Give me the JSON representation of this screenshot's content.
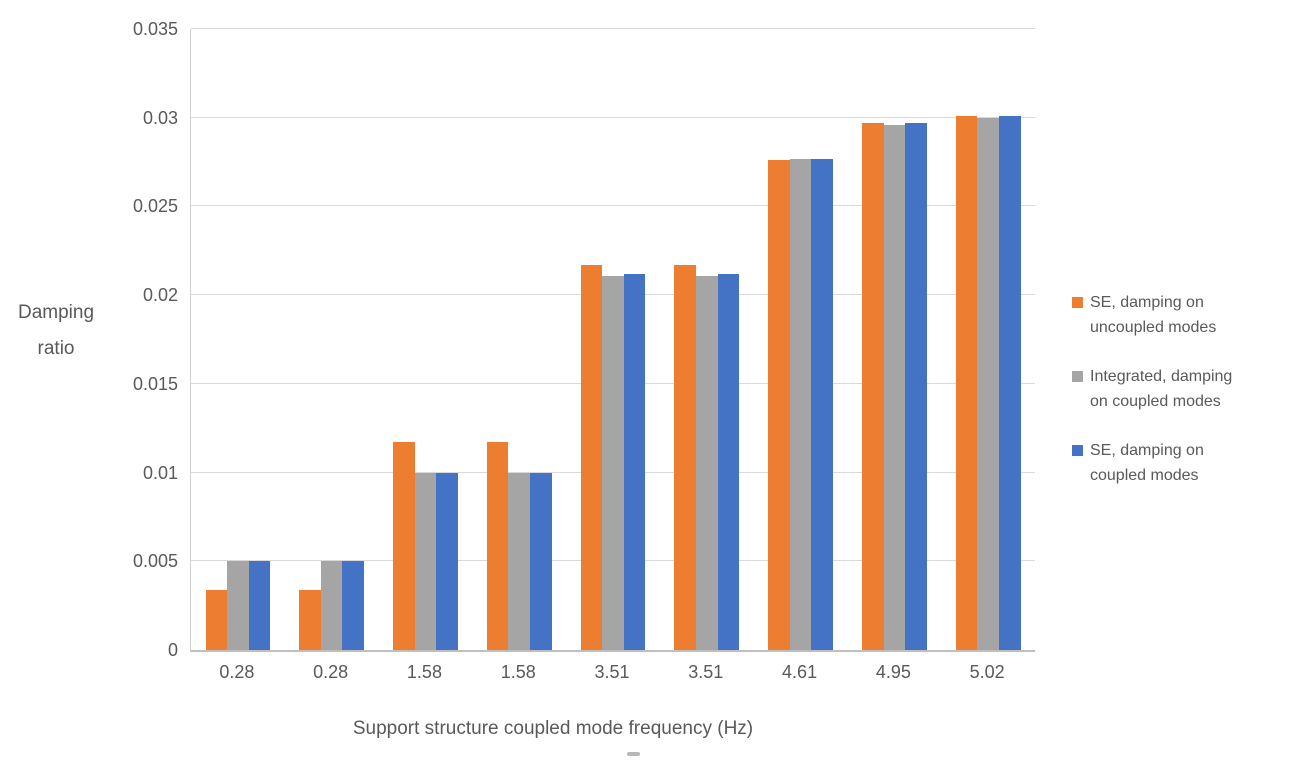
{
  "chart_data": {
    "type": "bar",
    "title": "",
    "categories": [
      "0.28",
      "0.28",
      "1.58",
      "1.58",
      "3.51",
      "3.51",
      "4.61",
      "4.95",
      "5.02"
    ],
    "series": [
      {
        "name": "SE, damping on uncoupled modes",
        "color": "#ED7D31",
        "values": [
          0.0034,
          0.0034,
          0.0117,
          0.0117,
          0.0217,
          0.0217,
          0.0276,
          0.0297,
          0.0301
        ]
      },
      {
        "name": "Integrated, damping on coupled modes",
        "color": "#A5A5A5",
        "values": [
          0.005,
          0.005,
          0.01,
          0.01,
          0.0211,
          0.0211,
          0.0277,
          0.0296,
          0.03
        ]
      },
      {
        "name": "SE, damping on coupled modes",
        "color": "#4472C4",
        "values": [
          0.005,
          0.005,
          0.01,
          0.01,
          0.0212,
          0.0212,
          0.0277,
          0.0297,
          0.0301
        ]
      }
    ],
    "xlabel": "Support structure coupled mode frequency (Hz)",
    "ylabel": "Damping ratio",
    "ylim": [
      0,
      0.035
    ],
    "ytick_step": 0.005,
    "yticks": [
      "0.035",
      "0.03",
      "0.025",
      "0.02",
      "0.015",
      "0.01",
      "0.005",
      "0"
    ],
    "grid": "horizontal",
    "legend_position": "right"
  },
  "axis_titles": {
    "x": "Support structure coupled mode frequency (Hz)",
    "y_lines": [
      "Damping",
      "ratio"
    ]
  },
  "legend": {
    "items": [
      {
        "color": "#ED7D31",
        "lines": [
          "SE, damping on",
          "uncoupled modes"
        ]
      },
      {
        "color": "#A5A5A5",
        "lines": [
          "Integrated, damping",
          "on coupled modes"
        ]
      },
      {
        "color": "#4472C4",
        "lines": [
          "SE, damping on",
          "coupled modes"
        ]
      }
    ]
  },
  "colors": {
    "text": "#595959",
    "gridline": "#d9d9d9",
    "axis_line": "#bfbfbf",
    "background": "#ffffff"
  }
}
